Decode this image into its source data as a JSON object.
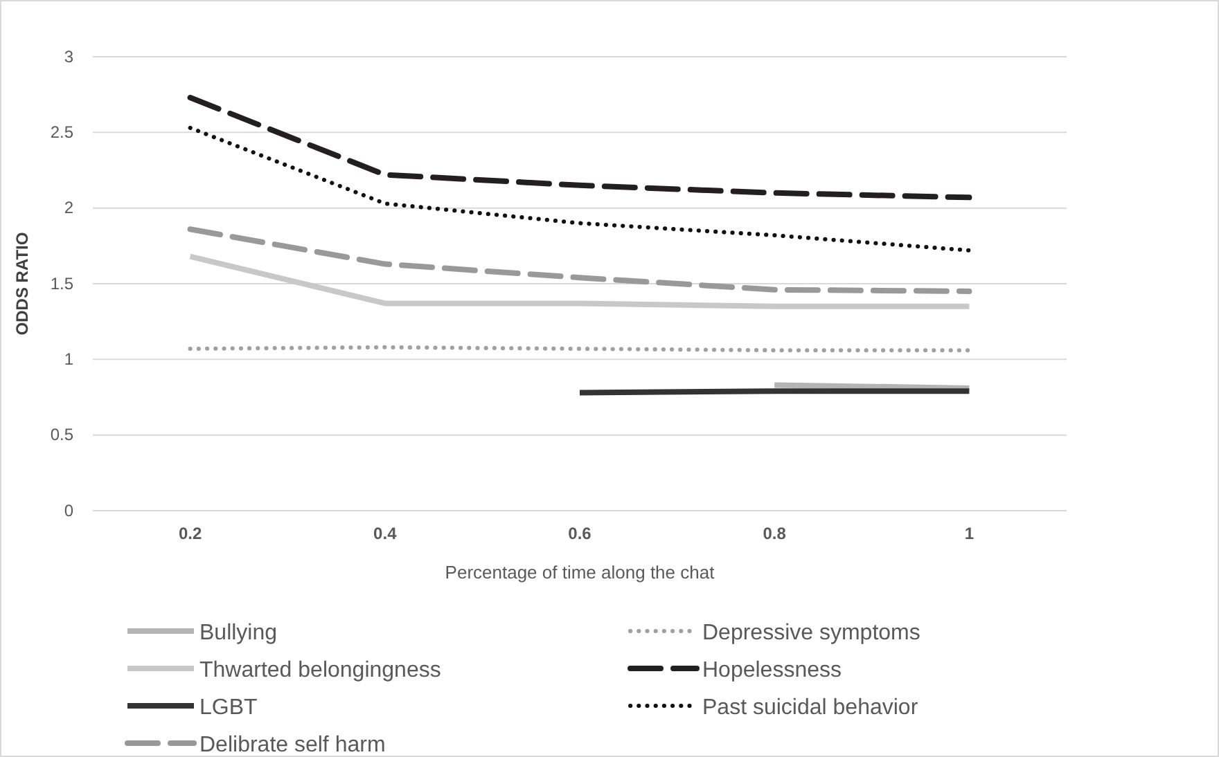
{
  "chart_data": {
    "type": "line",
    "xlabel": "Percentage of time along the chat",
    "ylabel": "ODDS RATIO",
    "categories": [
      "0.2",
      "0.4",
      "0.6",
      "0.8",
      "1"
    ],
    "ylim": [
      0,
      3
    ],
    "yticks": [
      0,
      0.5,
      1,
      1.5,
      2,
      2.5,
      3
    ],
    "grid": "y",
    "legend": "bottom",
    "series": [
      {
        "name": "Bullying",
        "color": "#b4b4b4",
        "line_style": "solid",
        "values": [
          null,
          null,
          null,
          0.83,
          0.81
        ]
      },
      {
        "name": "Depressive symptoms",
        "color": "#a0a0a0",
        "line_style": "dotted",
        "values": [
          1.07,
          1.08,
          1.07,
          1.06,
          1.06
        ]
      },
      {
        "name": "Thwarted belongingness",
        "color": "#c8c8c8",
        "line_style": "solid",
        "values": [
          1.68,
          1.37,
          1.37,
          1.35,
          1.35
        ]
      },
      {
        "name": "Hopelessness",
        "color": "#231f20",
        "line_style": "dashed",
        "values": [
          2.73,
          2.22,
          2.15,
          2.1,
          2.07
        ]
      },
      {
        "name": "LGBT",
        "color": "#333333",
        "line_style": "solid",
        "values": [
          null,
          null,
          0.78,
          0.79,
          0.79
        ]
      },
      {
        "name": "Past suicidal behavior",
        "color": "#111111",
        "line_style": "dotted",
        "values": [
          2.53,
          2.03,
          1.9,
          1.82,
          1.72
        ]
      },
      {
        "name": "Delibrate self harm",
        "color": "#999999",
        "line_style": "dashed",
        "values": [
          1.86,
          1.63,
          1.54,
          1.46,
          1.45
        ]
      }
    ]
  }
}
